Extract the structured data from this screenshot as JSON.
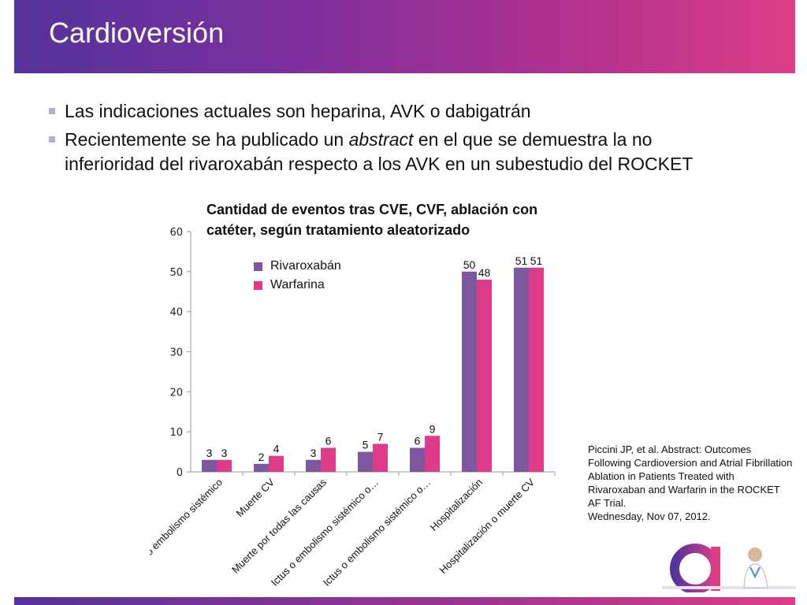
{
  "slide": {
    "title": "Cardioversión",
    "bullets": [
      {
        "text_before": "Las indicaciones actuales son heparina, AVK o dabigatrán",
        "italic": "",
        "text_after": ""
      },
      {
        "text_before": "Recientemente se ha publicado un ",
        "italic": "abstract",
        "text_after": " en el que se demuestra la no inferioridad del rivaroxabán respecto a los AVK en un subestudio del ROCKET"
      }
    ],
    "citation": {
      "text": "Piccini JP, et al. Abstract: Outcomes Following Cardioversion and Atrial Fibrillation Ablation in Patients Treated with Rivaroxaban and Warfarin in the ROCKET AF Trial.",
      "date": "Wednesday, Nov 07, 2012."
    },
    "colors": {
      "rivaroxaban": "#7d57a0",
      "warfarina": "#de3b88",
      "title_bar": "#7b2f9e"
    }
  },
  "chart_data": {
    "type": "bar",
    "title": "Cantidad de eventos tras CVE, CVF, ablación con catéter, según tratamiento aleatorizado",
    "categories": [
      "Ictus o embolismo sistémico",
      "Muerte CV",
      "Muerte por todas las causas",
      "Ictus o embolismo sistémico o…",
      "Ictus o embolismo sistémico o…",
      "Hospitalización",
      "Hospitalización o muerte CV"
    ],
    "series": [
      {
        "name": "Rivaroxabán",
        "values": [
          3,
          2,
          3,
          5,
          6,
          50,
          51
        ]
      },
      {
        "name": "Warfarina",
        "values": [
          3,
          4,
          6,
          7,
          9,
          48,
          51
        ]
      }
    ],
    "ylim": [
      0,
      60
    ],
    "yticks": [
      0,
      10,
      20,
      30,
      40,
      50,
      60
    ],
    "grid": false,
    "legend_position": "top-left"
  }
}
